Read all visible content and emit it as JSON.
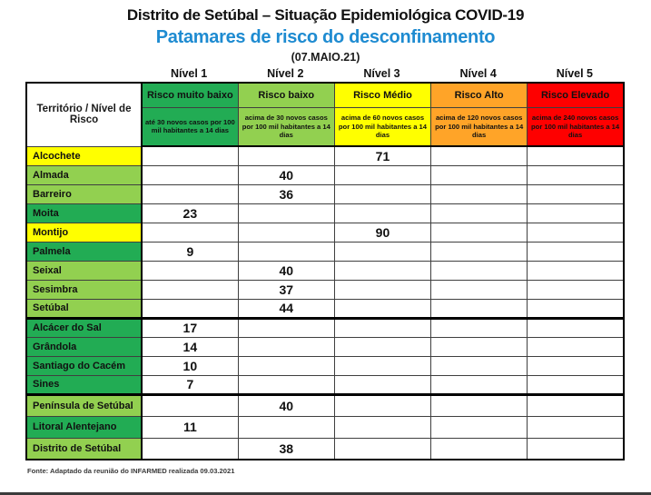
{
  "page": {
    "title": "Distrito de Setúbal – Situação Epidemiológica COVID-19",
    "subtitle": "Patamares de risco do desconfinamento",
    "date": "(07.MAIO.21)",
    "source": "Fonte: Adaptado  da reunião  do INFARMED   realizada  09.03.2021"
  },
  "colors": {
    "dark_green": "#22AC54",
    "light_green": "#92D050",
    "yellow": "#FFFF00",
    "orange": "#FFA428",
    "red": "#FE0000",
    "subtitle_blue": "#1E8BD1"
  },
  "table": {
    "corner_header": "Território / Nível de Risco",
    "levels": [
      {
        "label": "Nível 1",
        "risk": "Risco muito baixo",
        "description": "até 30 novos casos por 100 mil habitantes a 14 dias",
        "color_key": "dark_green"
      },
      {
        "label": "Nível 2",
        "risk": "Risco baixo",
        "description": "acima de 30 novos casos por 100 mil habitantes a 14 dias",
        "color_key": "light_green"
      },
      {
        "label": "Nível 3",
        "risk": "Risco Médio",
        "description": "acima de 60 novos casos por 100 mil habitantes a 14 dias",
        "color_key": "yellow"
      },
      {
        "label": "Nível 4",
        "risk": "Risco Alto",
        "description": "acima de 120 novos casos por 100 mil habitantes a 14 dias",
        "color_key": "orange"
      },
      {
        "label": "Nível 5",
        "risk": "Risco Elevado",
        "description": "acima de 240 novos casos por 100 mil habitantes a 14 dias",
        "color_key": "red"
      }
    ],
    "rows": [
      {
        "territory": "Alcochete",
        "level": 3,
        "value": "71",
        "color_key": "yellow"
      },
      {
        "territory": "Almada",
        "level": 2,
        "value": "40",
        "color_key": "light_green"
      },
      {
        "territory": "Barreiro",
        "level": 2,
        "value": "36",
        "color_key": "light_green"
      },
      {
        "territory": "Moita",
        "level": 1,
        "value": "23",
        "color_key": "dark_green"
      },
      {
        "territory": "Montijo",
        "level": 3,
        "value": "90",
        "color_key": "yellow"
      },
      {
        "territory": "Palmela",
        "level": 1,
        "value": "9",
        "color_key": "dark_green"
      },
      {
        "territory": "Seixal",
        "level": 2,
        "value": "40",
        "color_key": "light_green"
      },
      {
        "territory": "Sesimbra",
        "level": 2,
        "value": "37",
        "color_key": "light_green"
      },
      {
        "territory": "Setúbal",
        "level": 2,
        "value": "44",
        "color_key": "light_green",
        "group_end": true
      },
      {
        "territory": "Alcácer do Sal",
        "level": 1,
        "value": "17",
        "color_key": "dark_green"
      },
      {
        "territory": "Grândola",
        "level": 1,
        "value": "14",
        "color_key": "dark_green"
      },
      {
        "territory": "Santiago do Cacém",
        "level": 1,
        "value": "10",
        "color_key": "dark_green"
      },
      {
        "territory": "Sines",
        "level": 1,
        "value": "7",
        "color_key": "dark_green",
        "group_end": true
      },
      {
        "territory": "Península de Setúbal",
        "level": 2,
        "value": "40",
        "color_key": "light_green",
        "tall": true
      },
      {
        "territory": "Litoral Alentejano",
        "level": 1,
        "value": "11",
        "color_key": "dark_green",
        "tall": true
      },
      {
        "territory": "Distrito de Setúbal",
        "level": 2,
        "value": "38",
        "color_key": "light_green",
        "tall": true
      }
    ]
  }
}
